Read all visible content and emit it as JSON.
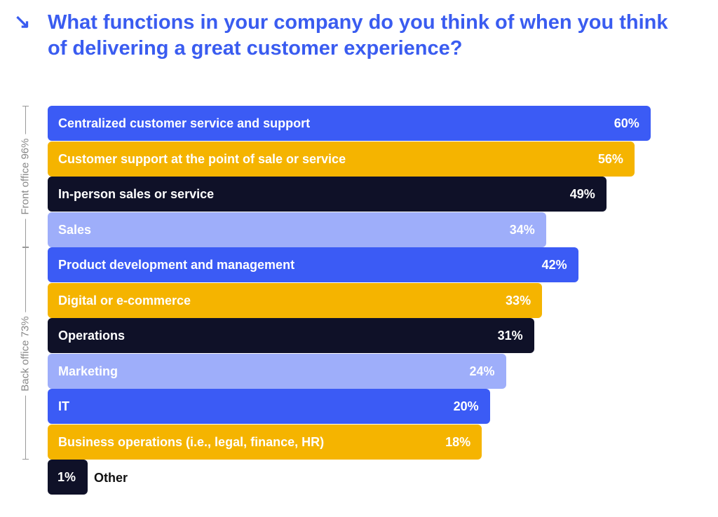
{
  "title": "What functions in your company do you think of when you think of delivering a great customer experience?",
  "icon": "arrow-down-right-icon",
  "chart_data": {
    "type": "bar",
    "orientation": "horizontal",
    "title": "What functions in your company do you think of when you think of delivering a great customer experience?",
    "categories": [
      "Centralized customer service and support",
      "Customer support at the point of sale or service",
      "In-person sales or service",
      "Sales",
      "Product development and management",
      "Digital or e-commerce",
      "Operations",
      "Marketing",
      "IT",
      "Business operations (i.e., legal, finance, HR)",
      "Other"
    ],
    "values": [
      60,
      56,
      49,
      34,
      42,
      33,
      31,
      24,
      20,
      18,
      1
    ],
    "value_labels": [
      "60%",
      "56%",
      "49%",
      "34%",
      "42%",
      "33%",
      "31%",
      "24%",
      "20%",
      "18%",
      "1%"
    ],
    "unit": "%",
    "groups": [
      {
        "label": "Front office 96%",
        "start": 0,
        "end": 3
      },
      {
        "label": "Back office 73%",
        "start": 4,
        "end": 9
      }
    ],
    "colors": [
      "#3b5bf5",
      "#f5b400",
      "#0f1128",
      "#9eaefa",
      "#3b5bf5",
      "#f5b400",
      "#0f1128",
      "#9eaefa",
      "#3b5bf5",
      "#f5b400",
      "#0f1128"
    ],
    "grid": false,
    "legend": "none"
  }
}
